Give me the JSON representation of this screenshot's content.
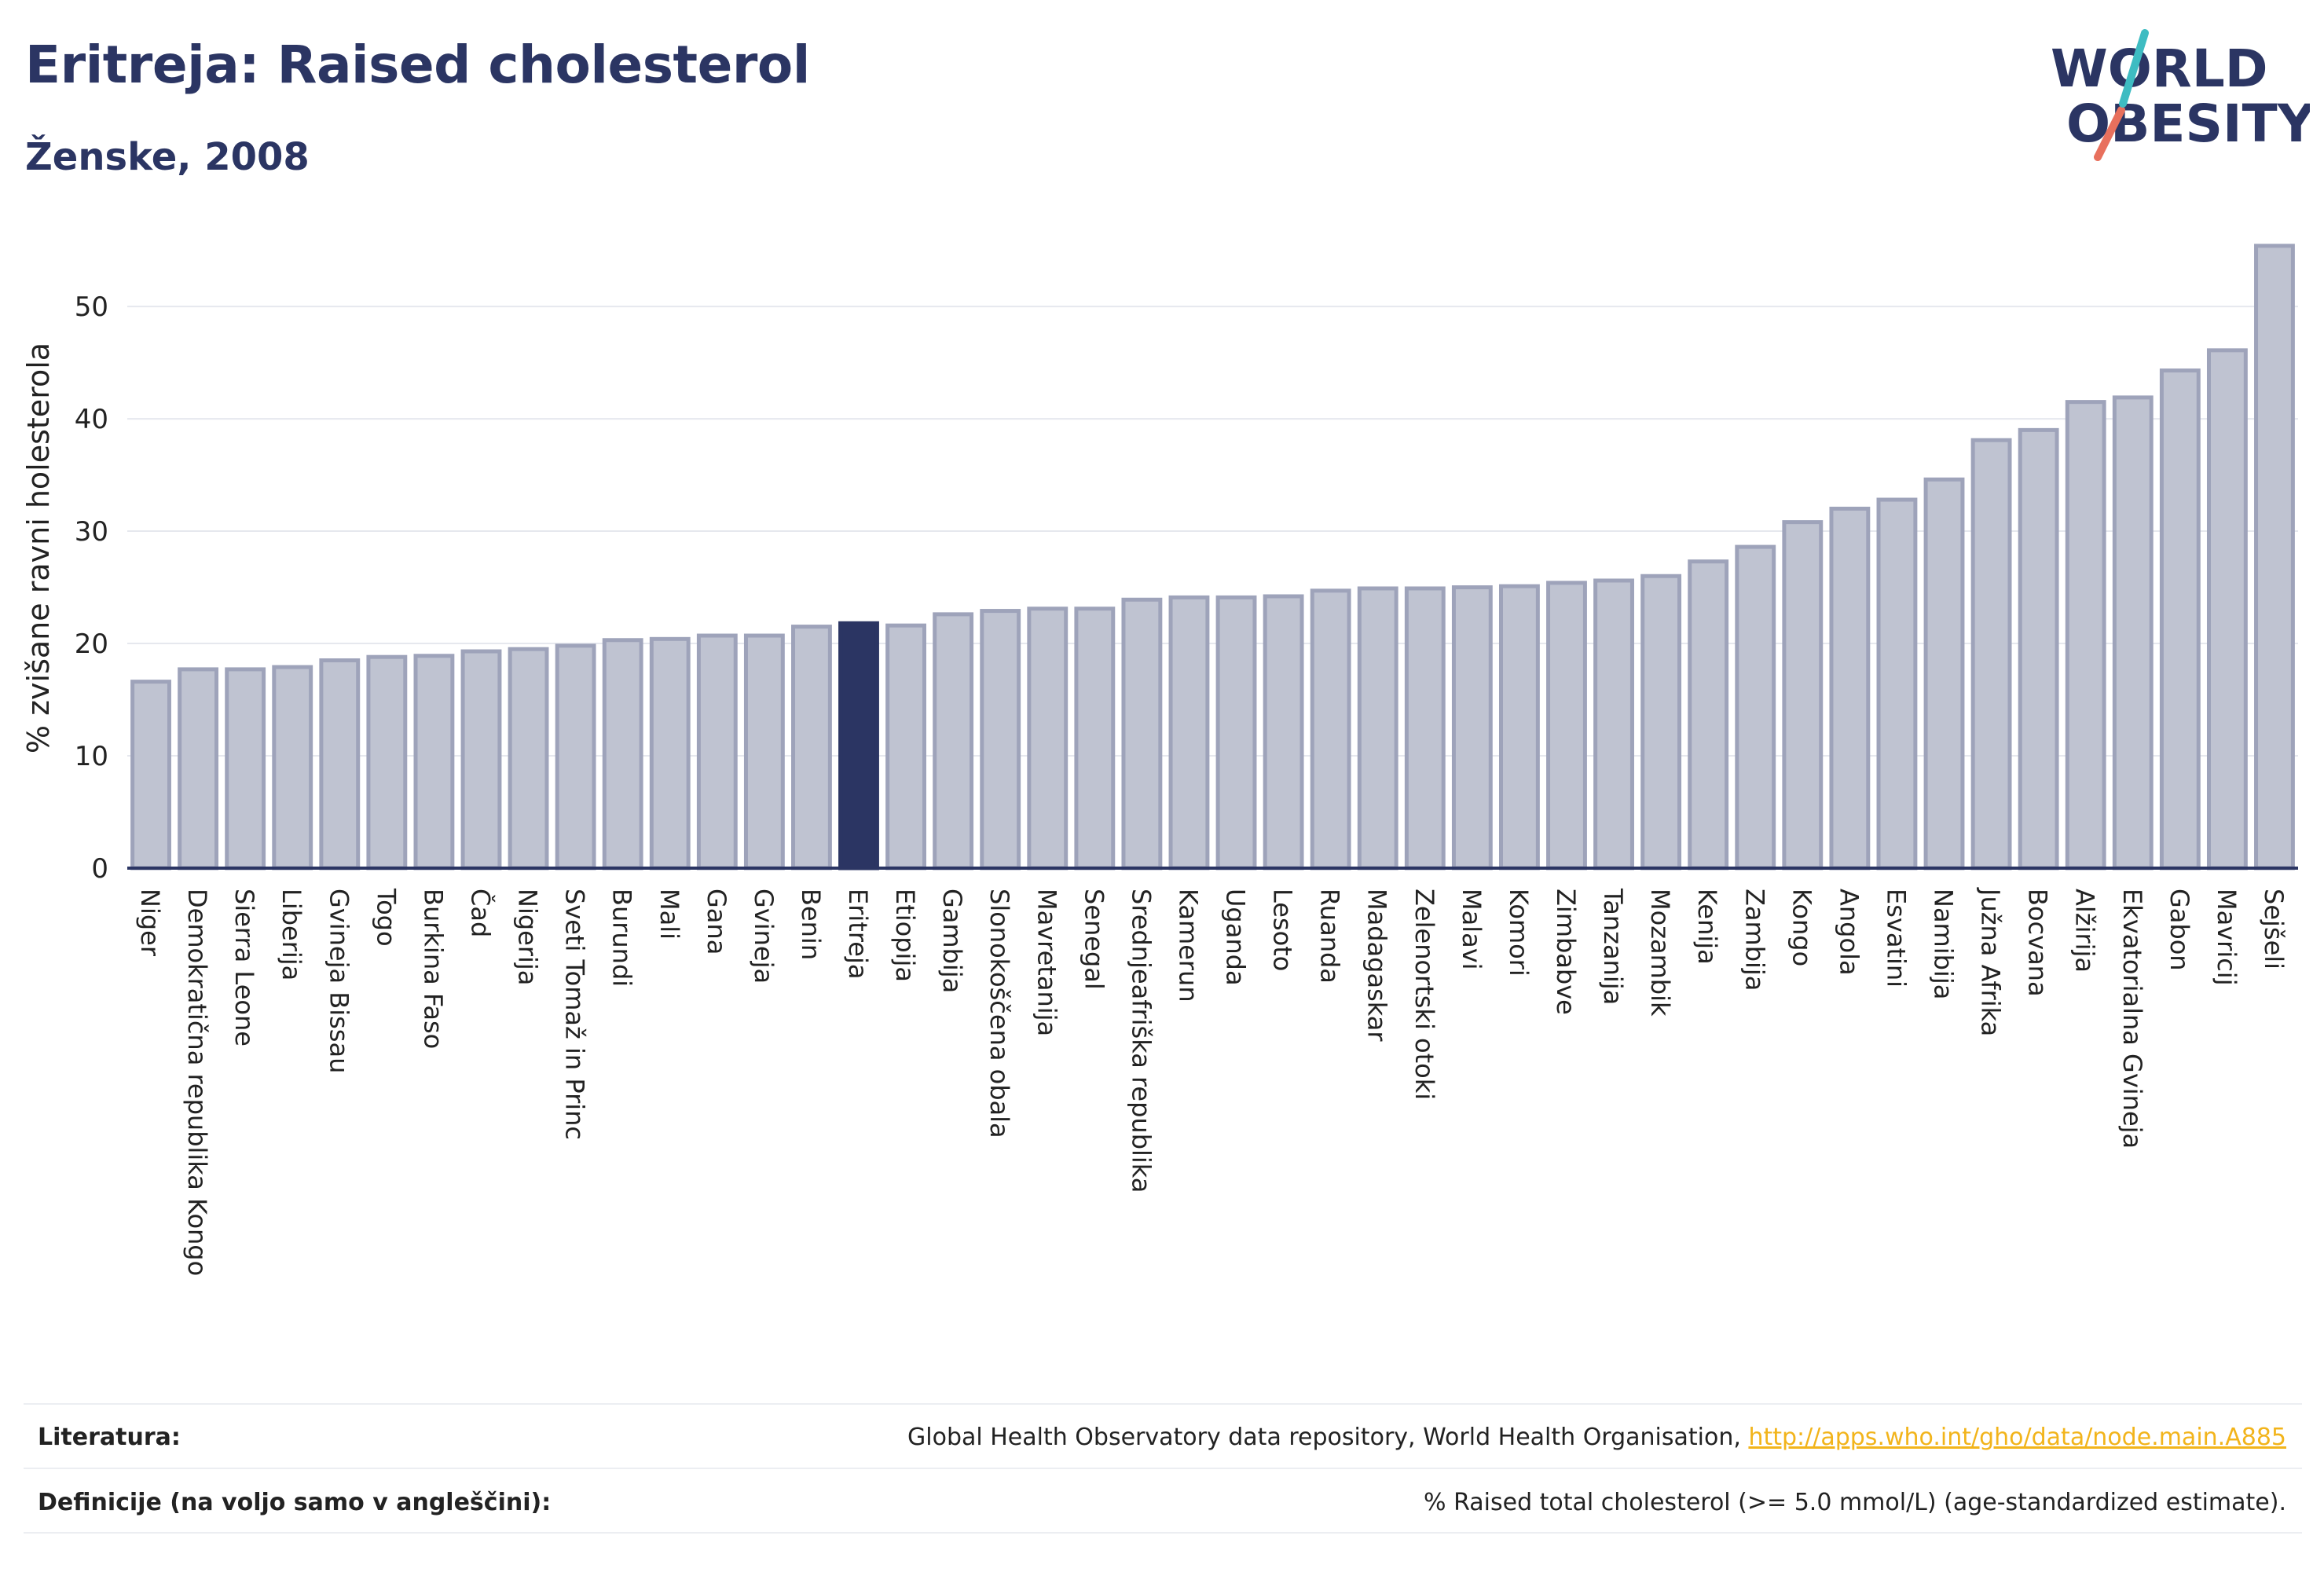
{
  "header": {
    "title": "Eritreja: Raised cholesterol",
    "subtitle": "Ženske, 2008"
  },
  "logo": {
    "line1": "WORLD",
    "line2": "OBESITY"
  },
  "colors": {
    "bar_fill": "#bfc3d1",
    "bar_stroke": "#9ea3ba",
    "highlight": "#2b3563",
    "grid": "#e6e8ee",
    "axis": "#2b3563",
    "link": "#f2b41b"
  },
  "chart_data": {
    "type": "bar",
    "ylabel": "% zvišane ravni holesterola",
    "ylim": [
      0,
      57
    ],
    "yticks": [
      0,
      10,
      20,
      30,
      40,
      50
    ],
    "grid": true,
    "highlight": "Eritreja",
    "categories": [
      "Niger",
      "Demokratična republika Kongo",
      "Sierra Leone",
      "Liberija",
      "Gvineja Bissau",
      "Togo",
      "Burkina Faso",
      "Čad",
      "Nigerija",
      "Sveti Tomaž in Princ",
      "Burundi",
      "Mali",
      "Gana",
      "Gvineja",
      "Benin",
      "Eritreja",
      "Etiopija",
      "Gambija",
      "Slonokoščena obala",
      "Mavretanija",
      "Senegal",
      "Srednjeafriška republika",
      "Kamerun",
      "Uganda",
      "Lesoto",
      "Ruanda",
      "Madagaskar",
      "Zelenortski otoki",
      "Malavi",
      "Komori",
      "Zimbabve",
      "Tanzanija",
      "Mozambik",
      "Kenija",
      "Zambija",
      "Kongo",
      "Angola",
      "Esvatini",
      "Namibija",
      "Južna Afrika",
      "Bocvana",
      "Alžirija",
      "Ekvatorialna Gvineja",
      "Gabon",
      "Mavricij",
      "Sejšeli"
    ],
    "values": [
      16.6,
      17.7,
      17.7,
      17.9,
      18.5,
      18.8,
      18.9,
      19.3,
      19.5,
      19.8,
      20.3,
      20.4,
      20.7,
      20.7,
      21.5,
      21.8,
      21.6,
      22.6,
      22.9,
      23.1,
      23.1,
      23.9,
      24.1,
      24.1,
      24.2,
      24.7,
      24.9,
      24.9,
      25.0,
      25.1,
      25.4,
      25.6,
      26.0,
      27.3,
      28.6,
      30.8,
      32.0,
      32.8,
      34.6,
      38.1,
      39.0,
      41.5,
      41.9,
      44.3,
      46.1,
      55.4
    ]
  },
  "references": {
    "literature_label": "Literatura:",
    "literature_text": "Global Health Observatory data repository, World Health Organisation, ",
    "literature_link": "http://apps.who.int/gho/data/node.main.A885",
    "definitions_label": "Definicije (na voljo samo v angleščini):",
    "definitions_text": "% Raised total cholesterol (>= 5.0 mmol/L) (age-standardized estimate)."
  }
}
